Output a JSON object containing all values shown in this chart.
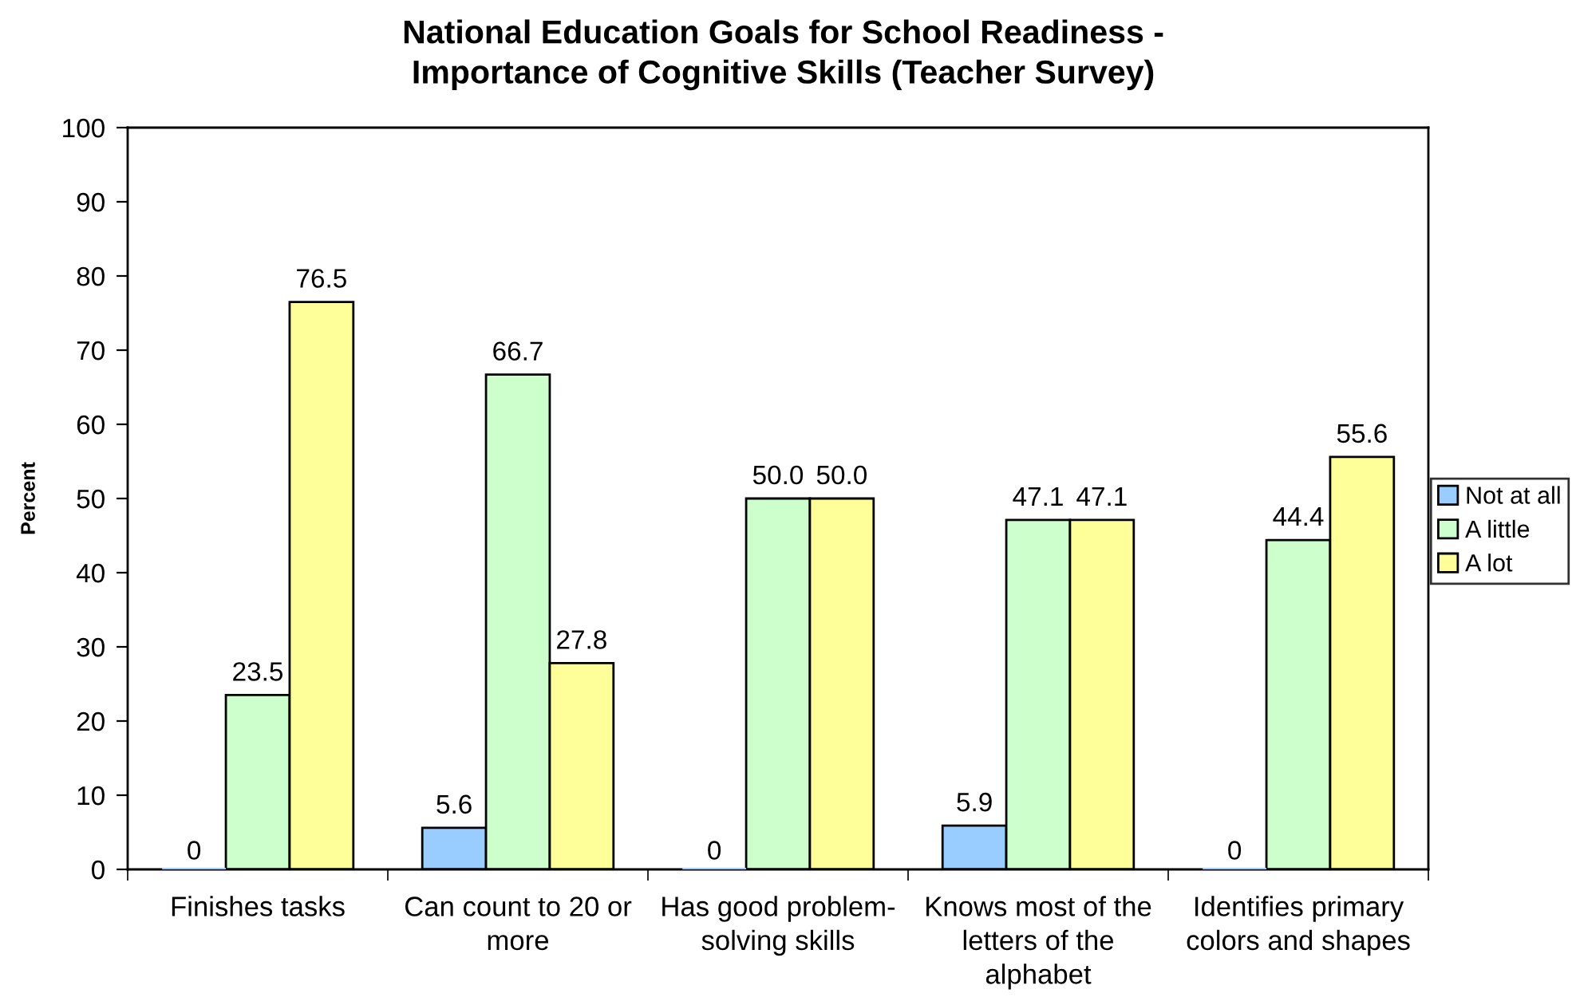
{
  "chart_data": {
    "type": "bar",
    "title": "National Education Goals for School Readiness -\nImportance of Cognitive Skills (Teacher Survey)",
    "ylabel": "Percent",
    "categories": [
      "Finishes tasks",
      "Can count to 20 or\nmore",
      "Has good problem-\nsolving skills",
      "Knows most of the\nletters of the\nalphabet",
      "Identifies primary\ncolors and shapes"
    ],
    "series": [
      {
        "name": "Not at all",
        "color": "#99ccff",
        "values": [
          0,
          5.6,
          0,
          5.9,
          0
        ],
        "value_labels": [
          "0",
          "5.6",
          "0",
          "5.9",
          "0"
        ]
      },
      {
        "name": "A little",
        "color": "#ccffcc",
        "values": [
          23.5,
          66.7,
          50.0,
          47.1,
          44.4
        ],
        "value_labels": [
          "23.5",
          "66.7",
          "50.0",
          "47.1",
          "44.4"
        ]
      },
      {
        "name": "A lot",
        "color": "#ffff99",
        "values": [
          76.5,
          27.8,
          50.0,
          47.1,
          55.6
        ],
        "value_labels": [
          "76.5",
          "27.8",
          "50.0",
          "47.1",
          "55.6"
        ]
      }
    ],
    "ylim": [
      0,
      100
    ],
    "yticks": [
      0,
      10,
      20,
      30,
      40,
      50,
      60,
      70,
      80,
      90,
      100
    ],
    "grid": false,
    "legend": "right"
  }
}
